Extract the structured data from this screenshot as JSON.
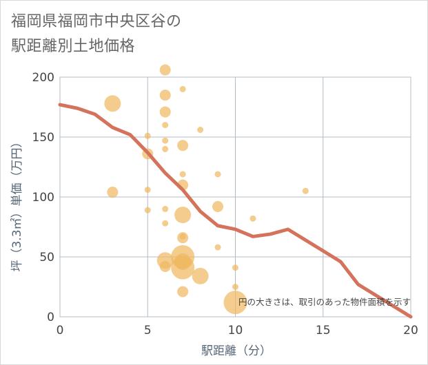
{
  "title_line1": "福岡県福岡市中央区谷の",
  "title_line2": "駅距離別土地価格",
  "note": "円の大きさは、取引のあった物件面積を示す",
  "colors": {
    "line": "#d4725c",
    "bubble": "#f0b961",
    "grid": "#b0bcc5",
    "text": "#444444",
    "axis_label": "#556677"
  },
  "chart_data": {
    "type": "scatter",
    "title": "福岡県福岡市中央区谷の駅距離別土地価格",
    "xlabel": "駅距離（分）",
    "ylabel": "坪（3.3㎡）単価（万円）",
    "xlim": [
      0,
      20
    ],
    "ylim": [
      0,
      200
    ],
    "x_ticks": [
      0,
      5,
      10,
      15,
      20
    ],
    "y_ticks": [
      0,
      50,
      100,
      150,
      200
    ],
    "grid": true,
    "line_series": {
      "name": "trend",
      "x": [
        0,
        1,
        2,
        3,
        4,
        5,
        6,
        7,
        8,
        9,
        10,
        11,
        12,
        13,
        14,
        15,
        16,
        17,
        18,
        19,
        20
      ],
      "y": [
        177,
        174,
        169,
        158,
        152,
        137,
        120,
        106,
        88,
        76,
        73,
        67,
        69,
        73,
        64,
        55,
        46,
        27,
        18,
        9,
        0
      ]
    },
    "scatter_series": {
      "name": "transactions",
      "points": [
        {
          "x": 3,
          "y": 178,
          "size": 3
        },
        {
          "x": 3,
          "y": 104,
          "size": 2
        },
        {
          "x": 5,
          "y": 151,
          "size": 1
        },
        {
          "x": 5,
          "y": 136,
          "size": 2
        },
        {
          "x": 5,
          "y": 106,
          "size": 1
        },
        {
          "x": 5,
          "y": 89,
          "size": 1
        },
        {
          "x": 6,
          "y": 206,
          "size": 2
        },
        {
          "x": 6,
          "y": 185,
          "size": 2
        },
        {
          "x": 6,
          "y": 171,
          "size": 2
        },
        {
          "x": 6,
          "y": 160,
          "size": 1
        },
        {
          "x": 6,
          "y": 147,
          "size": 1
        },
        {
          "x": 6,
          "y": 140,
          "size": 1
        },
        {
          "x": 6,
          "y": 90,
          "size": 1
        },
        {
          "x": 6,
          "y": 78,
          "size": 1
        },
        {
          "x": 6,
          "y": 47,
          "size": 3
        },
        {
          "x": 6,
          "y": 42,
          "size": 2
        },
        {
          "x": 7,
          "y": 190,
          "size": 1
        },
        {
          "x": 7,
          "y": 143,
          "size": 2
        },
        {
          "x": 7,
          "y": 119,
          "size": 1
        },
        {
          "x": 7,
          "y": 110,
          "size": 2
        },
        {
          "x": 7,
          "y": 85,
          "size": 3
        },
        {
          "x": 7,
          "y": 67,
          "size": 1
        },
        {
          "x": 7,
          "y": 66,
          "size": 2
        },
        {
          "x": 7,
          "y": 50,
          "size": 4
        },
        {
          "x": 7,
          "y": 46,
          "size": 3
        },
        {
          "x": 7,
          "y": 41,
          "size": 4
        },
        {
          "x": 7,
          "y": 21,
          "size": 2
        },
        {
          "x": 8,
          "y": 156,
          "size": 1
        },
        {
          "x": 8,
          "y": 34,
          "size": 3
        },
        {
          "x": 9,
          "y": 119,
          "size": 1
        },
        {
          "x": 9,
          "y": 92,
          "size": 2
        },
        {
          "x": 9,
          "y": 58,
          "size": 1
        },
        {
          "x": 10,
          "y": 41,
          "size": 1
        },
        {
          "x": 10,
          "y": 25,
          "size": 1
        },
        {
          "x": 10,
          "y": 12,
          "size": 4
        },
        {
          "x": 11,
          "y": 82,
          "size": 1
        },
        {
          "x": 14,
          "y": 105,
          "size": 1
        }
      ]
    }
  }
}
